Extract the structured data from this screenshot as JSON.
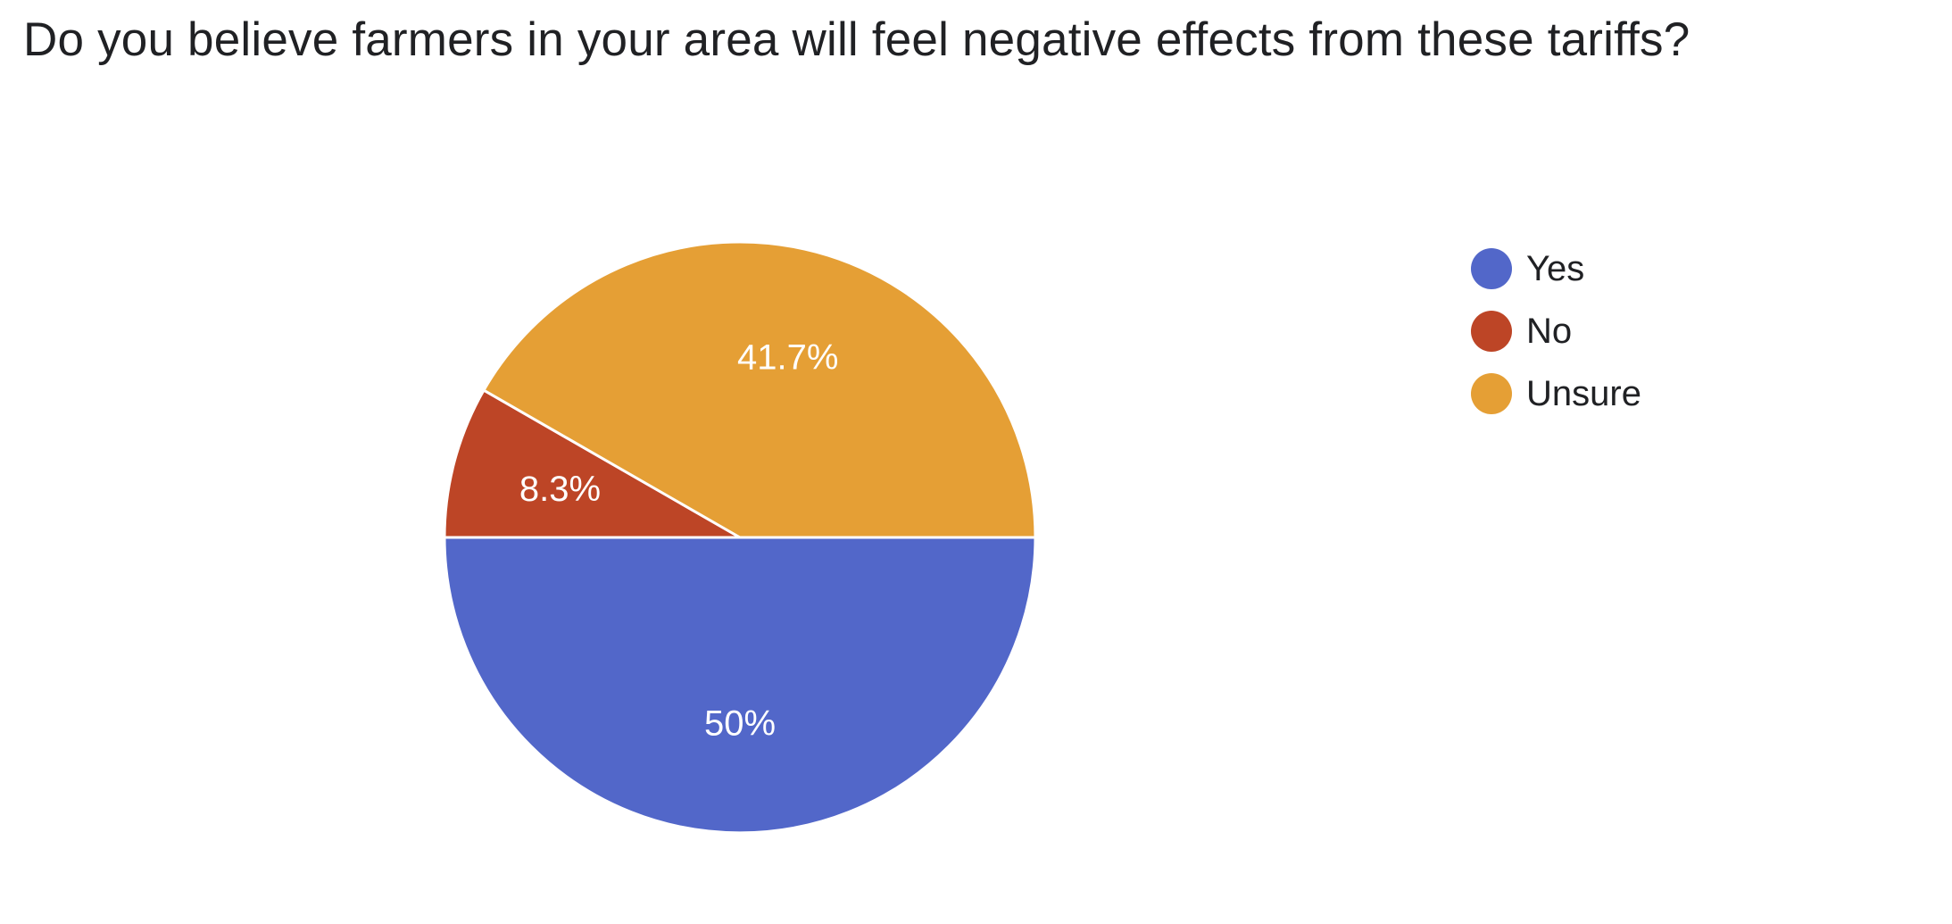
{
  "chart_data": {
    "type": "pie",
    "title": "Do you believe farmers in your area will feel negative effects from these tariffs?",
    "categories": [
      "Yes",
      "No",
      "Unsure"
    ],
    "values": [
      50,
      8.3,
      41.7
    ],
    "labels": [
      "50%",
      "8.3%",
      "41.7%"
    ],
    "colors": [
      "#5267c9",
      "#bd4526",
      "#e59f35"
    ],
    "legend_position": "right"
  },
  "legend": {
    "items": [
      {
        "label": "Yes",
        "color": "#5267c9"
      },
      {
        "label": "No",
        "color": "#bd4526"
      },
      {
        "label": "Unsure",
        "color": "#e59f35"
      }
    ]
  }
}
